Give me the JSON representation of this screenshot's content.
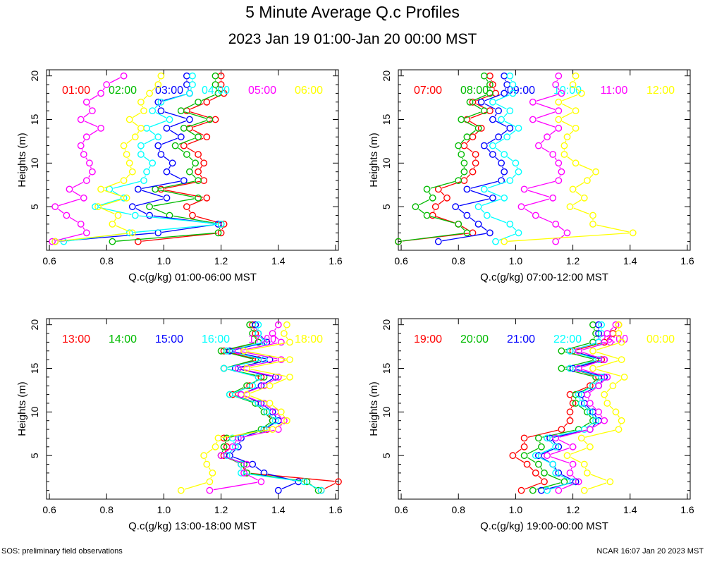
{
  "title": "5 Minute Average Q.c Profiles",
  "subtitle": "2023 Jan 19 01:00-Jan 20 00:00 MST",
  "footer_left": "SOS: preliminary field observations",
  "footer_right": "NCAR 16:07 Jan 20 2023 MST",
  "colors": {
    "series": [
      "#ff0000",
      "#00bb00",
      "#0000ff",
      "#00ffff",
      "#ff00ff",
      "#ffff00"
    ]
  },
  "chart_data": [
    {
      "type": "scatter",
      "xlabel": "Q.c(g/kg) 01:00-06:00 MST",
      "ylabel": "Heights (m)",
      "xlim": [
        0.59,
        1.61
      ],
      "ylim": [
        0,
        20.7
      ],
      "xticks": [
        0.6,
        0.8,
        1.0,
        1.2,
        1.4,
        1.6
      ],
      "yticks": [
        5,
        10,
        15,
        20
      ],
      "heights": [
        1,
        2,
        3,
        4,
        5,
        6,
        7,
        8,
        9,
        10,
        11,
        12,
        13,
        14,
        15,
        16,
        17,
        18,
        19,
        20
      ],
      "series": [
        {
          "name": "01:00",
          "values": [
            0.91,
            1.2,
            1.21,
            1.1,
            1.08,
            1.15,
            0.99,
            1.14,
            1.12,
            1.14,
            1.12,
            1.07,
            1.15,
            1.09,
            1.18,
            1.08,
            1.15,
            1.21,
            1.2,
            1.2
          ]
        },
        {
          "name": "02:00",
          "values": [
            0.82,
            1.19,
            1.2,
            1.02,
            0.95,
            1.12,
            0.97,
            1.12,
            1.09,
            1.11,
            1.08,
            1.04,
            1.12,
            1.07,
            1.16,
            1.06,
            1.12,
            1.19,
            1.18,
            1.18
          ]
        },
        {
          "name": "03:00",
          "values": [
            0.62,
            0.98,
            1.19,
            0.95,
            0.89,
            1.01,
            0.91,
            1.07,
            1.01,
            1.03,
            0.99,
            0.98,
            1.06,
            1.01,
            1.09,
            0.99,
            0.98,
            1.09,
            1.08,
            1.08
          ]
        },
        {
          "name": "04:00",
          "values": [
            0.65,
            0.88,
            1.2,
            0.9,
            0.76,
            0.86,
            0.81,
            0.93,
            0.94,
            0.96,
            0.92,
            0.92,
            0.98,
            0.94,
            1.02,
            0.96,
            0.99,
            1.09,
            1.1,
            1.1
          ]
        },
        {
          "name": "05:00",
          "values": [
            0.61,
            0.73,
            0.71,
            0.66,
            0.62,
            0.72,
            0.67,
            0.73,
            0.75,
            0.74,
            0.72,
            0.71,
            0.73,
            0.78,
            0.71,
            0.75,
            0.73,
            0.78,
            0.8,
            0.86
          ]
        },
        {
          "name": "06:00",
          "values": [
            0.62,
            0.89,
            0.82,
            0.84,
            0.77,
            0.87,
            0.78,
            0.86,
            0.89,
            0.88,
            0.87,
            0.86,
            0.9,
            0.92,
            0.88,
            0.93,
            0.92,
            0.95,
            0.98,
            0.99
          ]
        }
      ]
    },
    {
      "type": "scatter",
      "xlabel": "Q.c(g/kg) 07:00-12:00 MST",
      "ylabel": "Heights (m)",
      "xlim": [
        0.59,
        1.61
      ],
      "ylim": [
        0,
        20.7
      ],
      "xticks": [
        0.6,
        0.8,
        1.0,
        1.2,
        1.4,
        1.6
      ],
      "yticks": [
        5,
        10,
        15,
        20
      ],
      "heights": [
        1,
        2,
        3,
        4,
        5,
        6,
        7,
        8,
        9,
        10,
        11,
        12,
        13,
        14,
        15,
        16,
        17,
        18,
        19,
        20
      ],
      "series": [
        {
          "name": "07:00",
          "values": [
            0.59,
            0.85,
            0.8,
            0.71,
            0.72,
            0.76,
            0.73,
            0.82,
            0.85,
            0.86,
            0.86,
            0.82,
            0.85,
            0.88,
            0.83,
            0.91,
            0.85,
            0.93,
            0.92,
            0.91
          ]
        },
        {
          "name": "08:00",
          "values": [
            0.59,
            0.83,
            0.8,
            0.69,
            0.65,
            0.71,
            0.69,
            0.8,
            0.82,
            0.82,
            0.81,
            0.8,
            0.83,
            0.87,
            0.81,
            0.89,
            0.84,
            0.91,
            0.91,
            0.89
          ]
        },
        {
          "name": "09:00",
          "values": [
            0.73,
            0.91,
            0.87,
            0.83,
            0.79,
            0.92,
            0.83,
            0.95,
            0.96,
            0.95,
            0.92,
            0.89,
            0.94,
            0.98,
            0.92,
            0.94,
            0.88,
            0.96,
            0.97,
            0.96
          ]
        },
        {
          "name": "10:00",
          "values": [
            0.93,
            1.01,
            0.98,
            0.9,
            0.87,
            0.96,
            0.89,
            0.98,
            1.01,
            1.0,
            0.96,
            0.92,
            0.97,
            1.01,
            0.95,
            0.98,
            0.92,
            0.99,
            0.99,
            0.98
          ]
        },
        {
          "name": "11:00",
          "values": [
            1.14,
            1.18,
            1.14,
            1.07,
            1.02,
            1.13,
            1.03,
            1.15,
            1.16,
            1.15,
            1.13,
            1.08,
            1.11,
            1.15,
            1.06,
            1.15,
            1.06,
            1.16,
            1.14,
            1.15
          ]
        },
        {
          "name": "12:00",
          "values": [
            0.96,
            1.41,
            1.27,
            1.27,
            1.19,
            1.24,
            1.2,
            1.25,
            1.28,
            1.21,
            1.17,
            1.17,
            1.18,
            1.21,
            1.15,
            1.21,
            1.15,
            1.23,
            1.2,
            1.21
          ]
        }
      ]
    },
    {
      "type": "scatter",
      "xlabel": "Q.c(g/kg) 13:00-18:00 MST",
      "ylabel": "Heights (m)",
      "xlim": [
        0.59,
        1.61
      ],
      "ylim": [
        0,
        20.7
      ],
      "xticks": [
        0.6,
        0.8,
        1.0,
        1.2,
        1.4,
        1.6
      ],
      "yticks": [
        5,
        10,
        15,
        20
      ],
      "heights": [
        1,
        2,
        3,
        4,
        5,
        6,
        7,
        8,
        9,
        10,
        11,
        12,
        13,
        14,
        15,
        16,
        17,
        18,
        19,
        20
      ],
      "series": [
        {
          "name": "13:00",
          "values": [
            1.55,
            1.61,
            1.29,
            1.27,
            1.21,
            1.22,
            1.21,
            1.36,
            1.38,
            1.36,
            1.33,
            1.24,
            1.3,
            1.34,
            1.21,
            1.33,
            1.21,
            1.33,
            1.32,
            1.31
          ]
        },
        {
          "name": "14:00",
          "values": [
            1.54,
            1.5,
            1.29,
            1.28,
            1.2,
            1.21,
            1.22,
            1.34,
            1.38,
            1.35,
            1.32,
            1.23,
            1.29,
            1.35,
            1.21,
            1.32,
            1.2,
            1.33,
            1.31,
            1.3
          ]
        },
        {
          "name": "15:00",
          "values": [
            1.4,
            1.47,
            1.35,
            1.31,
            1.23,
            1.26,
            1.27,
            1.35,
            1.4,
            1.38,
            1.34,
            1.27,
            1.34,
            1.39,
            1.25,
            1.37,
            1.23,
            1.36,
            1.33,
            1.32
          ]
        },
        {
          "name": "16:00",
          "values": [
            1.55,
            1.49,
            1.27,
            1.27,
            1.22,
            1.25,
            1.24,
            1.35,
            1.39,
            1.36,
            1.33,
            1.23,
            1.31,
            1.33,
            1.21,
            1.35,
            1.22,
            1.35,
            1.33,
            1.33
          ]
        },
        {
          "name": "17:00",
          "values": [
            1.16,
            1.34,
            1.28,
            1.29,
            1.2,
            1.24,
            1.26,
            1.4,
            1.42,
            1.39,
            1.35,
            1.27,
            1.35,
            1.4,
            1.26,
            1.41,
            1.26,
            1.41,
            1.38,
            1.4
          ]
        },
        {
          "name": "18:00",
          "values": [
            1.06,
            1.16,
            1.17,
            1.15,
            1.14,
            1.18,
            1.19,
            1.38,
            1.43,
            1.41,
            1.37,
            1.29,
            1.37,
            1.44,
            1.29,
            1.44,
            1.28,
            1.44,
            1.42,
            1.43
          ]
        }
      ]
    },
    {
      "type": "scatter",
      "xlabel": "Q.c(g/kg) 19:00-00:00 MST",
      "ylabel": "Heights (m)",
      "xlim": [
        0.59,
        1.61
      ],
      "ylim": [
        0,
        20.7
      ],
      "xticks": [
        0.6,
        0.8,
        1.0,
        1.2,
        1.4,
        1.6
      ],
      "yticks": [
        5,
        10,
        15,
        20
      ],
      "heights": [
        1,
        2,
        3,
        4,
        5,
        6,
        7,
        8,
        9,
        10,
        11,
        12,
        13,
        14,
        15,
        16,
        17,
        18,
        19,
        20
      ],
      "series": [
        {
          "name": "19:00",
          "values": [
            1.02,
            1.1,
            1.07,
            1.04,
            0.99,
            1.03,
            1.03,
            1.16,
            1.19,
            1.19,
            1.2,
            1.19,
            1.26,
            1.29,
            1.19,
            1.3,
            1.2,
            1.31,
            1.34,
            1.36
          ]
        },
        {
          "name": "20:00",
          "values": [
            1.06,
            1.17,
            1.1,
            1.08,
            1.03,
            1.09,
            1.08,
            1.22,
            1.27,
            1.25,
            1.21,
            1.21,
            1.27,
            1.28,
            1.16,
            1.28,
            1.16,
            1.27,
            1.28,
            1.27
          ]
        },
        {
          "name": "21:00",
          "values": [
            1.09,
            1.21,
            1.15,
            1.13,
            1.08,
            1.15,
            1.12,
            1.26,
            1.29,
            1.27,
            1.24,
            1.23,
            1.29,
            1.31,
            1.2,
            1.31,
            1.19,
            1.29,
            1.29,
            1.29
          ]
        },
        {
          "name": "22:00",
          "values": [
            1.11,
            1.2,
            1.14,
            1.13,
            1.07,
            1.14,
            1.11,
            1.24,
            1.28,
            1.26,
            1.23,
            1.22,
            1.27,
            1.3,
            1.19,
            1.29,
            1.19,
            1.29,
            1.3,
            1.3
          ]
        },
        {
          "name": "23:00",
          "values": [
            1.15,
            1.22,
            1.19,
            1.2,
            1.11,
            1.2,
            1.14,
            1.26,
            1.31,
            1.29,
            1.26,
            1.25,
            1.29,
            1.32,
            1.22,
            1.31,
            1.22,
            1.33,
            1.32,
            1.35
          ]
        },
        {
          "name": "00:00",
          "values": [
            1.24,
            1.33,
            1.25,
            1.24,
            1.18,
            1.26,
            1.23,
            1.36,
            1.37,
            1.35,
            1.32,
            1.31,
            1.34,
            1.38,
            1.27,
            1.37,
            1.27,
            1.37,
            1.36,
            1.36
          ]
        }
      ]
    }
  ]
}
